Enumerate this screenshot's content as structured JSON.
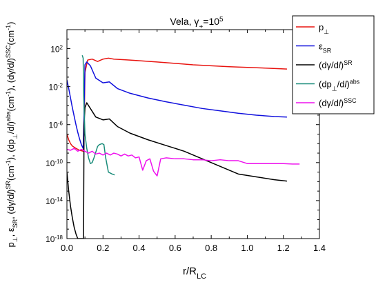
{
  "chart_data": {
    "type": "line",
    "title": "Vela, γ₊=10⁵",
    "title_parts": {
      "main": "Vela, γ",
      "sub": "+",
      "eq": "=10",
      "sup": "5"
    },
    "xlabel": {
      "main": "r/R",
      "sub": "LC"
    },
    "ylabel": "p⊥, εSR, (dγ/dl)SR(cm⁻¹), (dp⊥/dl)abs(cm⁻¹), (dγ/dl)SSC(cm⁻¹)",
    "ylabel_parts": [
      {
        "text": "p"
      },
      {
        "text": "⊥",
        "shift": "sub"
      },
      {
        "text": ", ε"
      },
      {
        "text": "SR",
        "shift": "sub"
      },
      {
        "text": ", (dγ/d"
      },
      {
        "text": "l",
        "italic": true
      },
      {
        "text": ")"
      },
      {
        "text": "SR",
        "shift": "super"
      },
      {
        "text": "(cm"
      },
      {
        "text": "-1",
        "shift": "super"
      },
      {
        "text": "), (dp"
      },
      {
        "text": "⊥",
        "shift": "sub"
      },
      {
        "text": "/d"
      },
      {
        "text": "l",
        "italic": true
      },
      {
        "text": ")"
      },
      {
        "text": "abs",
        "shift": "super"
      },
      {
        "text": "(cm"
      },
      {
        "text": "-1",
        "shift": "super"
      },
      {
        "text": "), (dγ/d"
      },
      {
        "text": "l",
        "italic": true
      },
      {
        "text": ")"
      },
      {
        "text": "SSC",
        "shift": "super"
      },
      {
        "text": "(cm"
      },
      {
        "text": "-1",
        "shift": "super"
      },
      {
        "text": ")"
      }
    ],
    "xlim": [
      0.0,
      1.4
    ],
    "ylim_log10": [
      -18,
      4
    ],
    "y_scale": "log",
    "x_ticks": [
      0.0,
      0.2,
      0.4,
      0.6,
      0.8,
      1.0,
      1.2,
      1.4
    ],
    "x_tick_labels": [
      "0.0",
      "0.2",
      "0.4",
      "0.6",
      "0.8",
      "1.0",
      "1.2",
      "1.4"
    ],
    "y_ticks_log10": [
      -18,
      -14,
      -10,
      -6,
      -2,
      2
    ],
    "y_tick_labels": [
      {
        "base": "10",
        "exp": "-18"
      },
      {
        "base": "10",
        "exp": "-14"
      },
      {
        "base": "10",
        "exp": "-10"
      },
      {
        "base": "10",
        "exp": "-6"
      },
      {
        "base": "10",
        "exp": "-2"
      },
      {
        "base": "10",
        "exp": "2"
      }
    ],
    "grid": false,
    "legend_position": "top-right",
    "series": [
      {
        "key": "p_perp",
        "label_parts": [
          {
            "text": "p"
          },
          {
            "text": "⊥",
            "shift": "sub"
          }
        ],
        "color": "#e8130f",
        "points": [
          [
            0.0,
            -7.0
          ],
          [
            0.01,
            -7.6
          ],
          [
            0.02,
            -8.0
          ],
          [
            0.03,
            -8.25
          ],
          [
            0.05,
            -8.5
          ],
          [
            0.07,
            -8.7
          ],
          [
            0.09,
            -8.8
          ],
          [
            0.095,
            -7.0
          ],
          [
            0.1,
            -0.5
          ],
          [
            0.115,
            0.8
          ],
          [
            0.14,
            0.9
          ],
          [
            0.17,
            0.65
          ],
          [
            0.2,
            0.9
          ],
          [
            0.23,
            1.0
          ],
          [
            0.26,
            0.9
          ],
          [
            0.35,
            0.8
          ],
          [
            0.5,
            0.6
          ],
          [
            0.7,
            0.3
          ],
          [
            0.9,
            0.1
          ],
          [
            1.1,
            -0.05
          ],
          [
            1.22,
            -0.15
          ]
        ]
      },
      {
        "key": "eps_sr",
        "label_parts": [
          {
            "text": "ε"
          },
          {
            "text": "SR",
            "shift": "sub"
          }
        ],
        "color": "#1010dd",
        "points": [
          [
            0.0,
            -1.3
          ],
          [
            0.01,
            -2.2
          ],
          [
            0.02,
            -3.2
          ],
          [
            0.03,
            -4.2
          ],
          [
            0.04,
            -5.1
          ],
          [
            0.05,
            -6.0
          ],
          [
            0.06,
            -6.8
          ],
          [
            0.07,
            -7.5
          ],
          [
            0.08,
            -8.1
          ],
          [
            0.09,
            -8.5
          ],
          [
            0.095,
            -5.0
          ],
          [
            0.1,
            0.3
          ],
          [
            0.11,
            0.6
          ],
          [
            0.13,
            0.2
          ],
          [
            0.16,
            -1.1
          ],
          [
            0.2,
            -1.6
          ],
          [
            0.235,
            -1.5
          ],
          [
            0.28,
            -2.2
          ],
          [
            0.35,
            -2.7
          ],
          [
            0.45,
            -3.2
          ],
          [
            0.55,
            -3.6
          ],
          [
            0.65,
            -3.95
          ],
          [
            0.75,
            -4.3
          ],
          [
            0.85,
            -4.55
          ],
          [
            0.95,
            -4.8
          ],
          [
            1.05,
            -5.0
          ],
          [
            1.15,
            -5.15
          ],
          [
            1.22,
            -5.2
          ]
        ]
      },
      {
        "key": "dgdl_sr",
        "label_parts": [
          {
            "text": "(dγ/d"
          },
          {
            "text": "l",
            "italic": true
          },
          {
            "text": ")"
          },
          {
            "text": "SR",
            "shift": "super"
          }
        ],
        "color": "#000000",
        "points": [
          [
            0.0,
            -11.0
          ],
          [
            0.01,
            -13.0
          ],
          [
            0.02,
            -14.6
          ],
          [
            0.03,
            -15.8
          ],
          [
            0.04,
            -16.8
          ],
          [
            0.05,
            -17.5
          ],
          [
            0.06,
            -18.0
          ],
          [
            0.092,
            -18.0
          ],
          [
            0.093,
            -14.0
          ],
          [
            0.095,
            -6.0
          ],
          [
            0.1,
            -4.2
          ],
          [
            0.11,
            -3.7
          ],
          [
            0.13,
            -4.3
          ],
          [
            0.16,
            -5.2
          ],
          [
            0.2,
            -5.5
          ],
          [
            0.235,
            -5.4
          ],
          [
            0.28,
            -6.2
          ],
          [
            0.35,
            -6.9
          ],
          [
            0.45,
            -7.6
          ],
          [
            0.55,
            -8.2
          ],
          [
            0.65,
            -8.8
          ],
          [
            0.75,
            -9.6
          ],
          [
            0.85,
            -10.4
          ],
          [
            0.95,
            -11.2
          ],
          [
            1.05,
            -11.5
          ],
          [
            1.15,
            -11.8
          ],
          [
            1.22,
            -11.95
          ]
        ]
      },
      {
        "key": "dpdl_abs",
        "label_parts": [
          {
            "text": "(dp"
          },
          {
            "text": "⊥",
            "shift": "sub"
          },
          {
            "text": "/d"
          },
          {
            "text": "l",
            "italic": true
          },
          {
            "text": ")"
          },
          {
            "text": "abs",
            "shift": "super"
          }
        ],
        "color": "#1a8c7a",
        "points": [
          [
            0.085,
            1.3
          ],
          [
            0.09,
            1.0
          ],
          [
            0.093,
            -3.0
          ],
          [
            0.1,
            -7.0
          ],
          [
            0.11,
            -8.5
          ],
          [
            0.12,
            -9.5
          ],
          [
            0.13,
            -10.1
          ],
          [
            0.14,
            -10.0
          ],
          [
            0.15,
            -9.5
          ],
          [
            0.16,
            -8.9
          ],
          [
            0.17,
            -8.3
          ],
          [
            0.18,
            -8.1
          ],
          [
            0.195,
            -8.0
          ],
          [
            0.205,
            -8.1
          ],
          [
            0.215,
            -9.5
          ],
          [
            0.23,
            -11.0
          ],
          [
            0.25,
            -11.2
          ],
          [
            0.265,
            -11.3
          ]
        ]
      },
      {
        "key": "dgdl_ssc",
        "label_parts": [
          {
            "text": "(dγ/d"
          },
          {
            "text": "l",
            "italic": true
          },
          {
            "text": ")"
          },
          {
            "text": "SSC",
            "shift": "super"
          }
        ],
        "color": "#ee10ee",
        "points": [
          [
            0.0,
            -8.6
          ],
          [
            0.02,
            -8.7
          ],
          [
            0.04,
            -8.5
          ],
          [
            0.06,
            -8.8
          ],
          [
            0.08,
            -8.6
          ],
          [
            0.1,
            -8.8
          ],
          [
            0.12,
            -9.0
          ],
          [
            0.14,
            -8.8
          ],
          [
            0.16,
            -9.1
          ],
          [
            0.18,
            -9.0
          ],
          [
            0.2,
            -9.2
          ],
          [
            0.22,
            -9.0
          ],
          [
            0.24,
            -9.2
          ],
          [
            0.26,
            -9.0
          ],
          [
            0.28,
            -9.1
          ],
          [
            0.3,
            -9.3
          ],
          [
            0.32,
            -9.1
          ],
          [
            0.34,
            -9.3
          ],
          [
            0.36,
            -9.2
          ],
          [
            0.38,
            -9.5
          ],
          [
            0.4,
            -9.4
          ],
          [
            0.42,
            -10.8
          ],
          [
            0.44,
            -9.8
          ],
          [
            0.46,
            -9.6
          ],
          [
            0.48,
            -10.9
          ],
          [
            0.5,
            -11.4
          ],
          [
            0.52,
            -9.6
          ],
          [
            0.55,
            -9.5
          ],
          [
            0.6,
            -9.6
          ],
          [
            0.65,
            -9.6
          ],
          [
            0.7,
            -9.7
          ],
          [
            0.75,
            -9.7
          ],
          [
            0.8,
            -9.8
          ],
          [
            0.85,
            -9.7
          ],
          [
            0.9,
            -9.8
          ],
          [
            0.95,
            -9.8
          ],
          [
            1.0,
            -10.1
          ],
          [
            1.05,
            -10.1
          ],
          [
            1.1,
            -10.1
          ],
          [
            1.15,
            -10.1
          ],
          [
            1.2,
            -10.1
          ],
          [
            1.25,
            -10.15
          ],
          [
            1.29,
            -10.15
          ]
        ]
      }
    ]
  }
}
